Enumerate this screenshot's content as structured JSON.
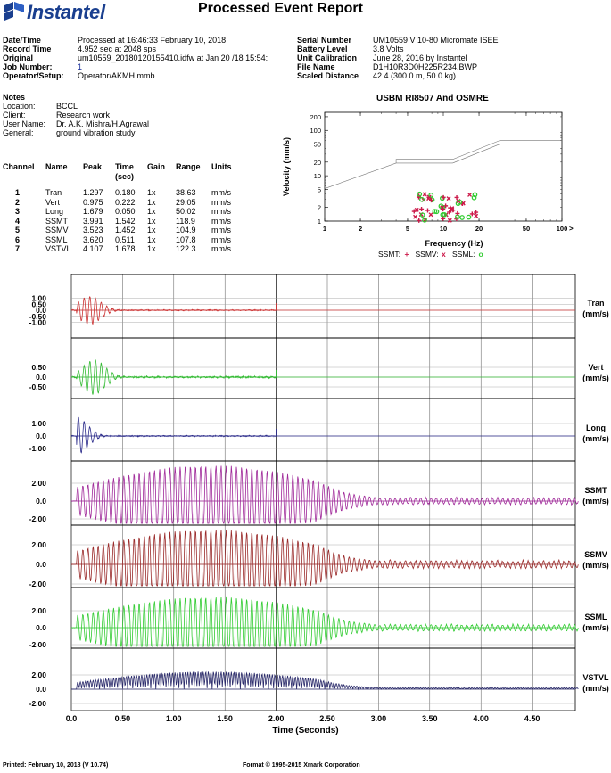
{
  "header": {
    "logo_text": "Instantel",
    "title": "Processed Event Report"
  },
  "info_left": [
    {
      "label": "Date/Time",
      "value": "Processed at 16:46:33 February 10, 2018"
    },
    {
      "label": "Record Time",
      "value": "4.952 sec at 2048 sps"
    },
    {
      "label": "Original",
      "value": "um10559_20180120155410.idfw at Jan 20 /18 15:54:"
    },
    {
      "label": "Job Number:",
      "value": "1"
    },
    {
      "label": "Operator/Setup:",
      "value": "Operator/AKMH.mmb"
    }
  ],
  "info_right": [
    {
      "label": "Serial Number",
      "value": "UM10559 V 10-80 Micromate ISEE"
    },
    {
      "label": "Battery Level",
      "value": "3.8 Volts"
    },
    {
      "label": "Unit Calibration",
      "value": "June 28, 2016 by Instantel"
    },
    {
      "label": "File Name",
      "value": "D1H10R3D0H225R234.BWP"
    },
    {
      "label": "Scaled Distance",
      "value": "42.4 (300.0 m, 50.0 kg)"
    }
  ],
  "notes": {
    "heading": "Notes",
    "rows": [
      {
        "label": "Location:",
        "value": "BCCL"
      },
      {
        "label": "Client:",
        "value": "Research work"
      },
      {
        "label": "User Name:",
        "value": "Dr. A.K. Mishra/H.Agrawal"
      },
      {
        "label": "General:",
        "value": "ground vibration study"
      }
    ]
  },
  "channel_table": {
    "headers": [
      "Channel",
      "Name",
      "Peak",
      "Time (sec)",
      "Gain",
      "Range",
      "Units"
    ],
    "header_time_top": "Time",
    "header_time_bottom": "(sec)",
    "rows": [
      [
        "1",
        "Tran",
        "1.297",
        "0.180",
        "1x",
        "38.63",
        "mm/s"
      ],
      [
        "2",
        "Vert",
        "0.975",
        "0.222",
        "1x",
        "29.05",
        "mm/s"
      ],
      [
        "3",
        "Long",
        "1.679",
        "0.050",
        "1x",
        "50.02",
        "mm/s"
      ],
      [
        "4",
        "SSMT",
        "3.991",
        "1.542",
        "1x",
        "118.9",
        "mm/s"
      ],
      [
        "5",
        "SSMV",
        "3.523",
        "1.452",
        "1x",
        "104.9",
        "mm/s"
      ],
      [
        "6",
        "SSML",
        "3.620",
        "0.511",
        "1x",
        "107.8",
        "mm/s"
      ],
      [
        "7",
        "VSTVL",
        "4.107",
        "1.678",
        "1x",
        "122.3",
        "mm/s"
      ]
    ]
  },
  "usbm_chart": {
    "title": "USBM RI8507 And OSMRE",
    "ylabel": "Velocity (mm/s)",
    "xlabel": "Frequency (Hz)",
    "y_ticks": [
      "200",
      "100",
      "50",
      "20",
      "10",
      "5",
      "2",
      "1"
    ],
    "x_ticks": [
      "1",
      "2",
      "5",
      "10",
      "20",
      "50",
      "100"
    ],
    "arrow": ">",
    "legend": [
      {
        "label": "SSMT:",
        "symbol": "+",
        "color": "#cc1a4a"
      },
      {
        "label": "SSMV:",
        "symbol": "x",
        "color": "#cc1a4a"
      },
      {
        "label": "SSML:",
        "symbol": "o",
        "color": "#33cc33"
      }
    ]
  },
  "chart_data": {
    "type": "line",
    "xlabel": "Time (Seconds)",
    "xlim": [
      -0.3,
      4.95
    ],
    "x_ticks": [
      "0.0",
      "0.50",
      "1.00",
      "1.50",
      "2.00",
      "2.50",
      "3.00",
      "3.50",
      "4.00",
      "4.50"
    ],
    "series": [
      {
        "name": "Tran",
        "unit": "(mm/s)",
        "color": "#cc3333",
        "y_ticks": [
          "1.00",
          "0.50",
          "0.0",
          "-0.50",
          "-1.00"
        ],
        "peak": 1.297,
        "peak_time": 0.18,
        "end": 2.0
      },
      {
        "name": "Vert",
        "unit": "(mm/s)",
        "color": "#33bb33",
        "y_ticks": [
          "0.50",
          "0.0",
          "-0.50"
        ],
        "peak": 0.975,
        "peak_time": 0.222,
        "end": 2.0
      },
      {
        "name": "Long",
        "unit": "(mm/s)",
        "color": "#2a2a8a",
        "y_ticks": [
          "1.00",
          "0.0",
          "-1.00"
        ],
        "peak": 1.679,
        "peak_time": 0.05,
        "end": 2.0
      },
      {
        "name": "SSMT",
        "unit": "(mm/s)",
        "color": "#a02a9a",
        "y_ticks": [
          "2.00",
          "0.0",
          "-2.00"
        ],
        "peak": 3.991,
        "peak_time": 1.542,
        "end": 4.95
      },
      {
        "name": "SSMV",
        "unit": "(mm/s)",
        "color": "#9a2a2a",
        "y_ticks": [
          "2.00",
          "0.0",
          "-2.00"
        ],
        "peak": 3.523,
        "peak_time": 1.452,
        "end": 4.95
      },
      {
        "name": "SSML",
        "unit": "(mm/s)",
        "color": "#33cc33",
        "y_ticks": [
          "2.00",
          "0.0",
          "-2.00"
        ],
        "peak": 3.62,
        "peak_time": 0.511,
        "end": 4.95
      },
      {
        "name": "VSTVL",
        "unit": "(mm/s)",
        "color": "#2a2a6a",
        "y_ticks": [
          "2.00",
          "0.0",
          "-2.00"
        ],
        "peak": 4.107,
        "peak_time": 1.678,
        "end": 4.95
      }
    ]
  },
  "footer": {
    "printed": "Printed: February 10, 2018 (V 10.74)",
    "format": "Format © 1995-2015 Xmark Corporation"
  }
}
